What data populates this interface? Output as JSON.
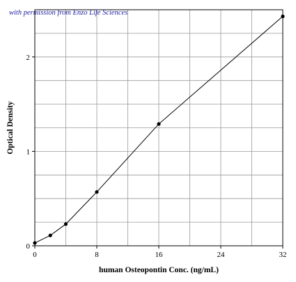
{
  "watermark": "with permission from Enzo Life Sciences",
  "chart_data": {
    "type": "line",
    "title": "",
    "xlabel": "human Osteopontin Conc. (ng/mL)",
    "ylabel": "Optical Density",
    "xlim": [
      0,
      32
    ],
    "ylim": [
      0,
      2.5
    ],
    "x_ticks": [
      0,
      8,
      16,
      24,
      32
    ],
    "y_ticks": [
      0,
      1,
      2
    ],
    "x_grid": [
      0,
      4,
      8,
      12,
      16,
      20,
      24,
      28,
      32
    ],
    "y_grid": [
      0,
      0.25,
      0.5,
      0.75,
      1,
      1.25,
      1.5,
      1.75,
      2,
      2.25,
      2.5
    ],
    "grid": true,
    "series": [
      {
        "x": [
          0,
          2,
          4,
          8,
          16,
          32
        ],
        "y": [
          0.03,
          0.11,
          0.23,
          0.57,
          1.29,
          2.43
        ]
      }
    ]
  }
}
